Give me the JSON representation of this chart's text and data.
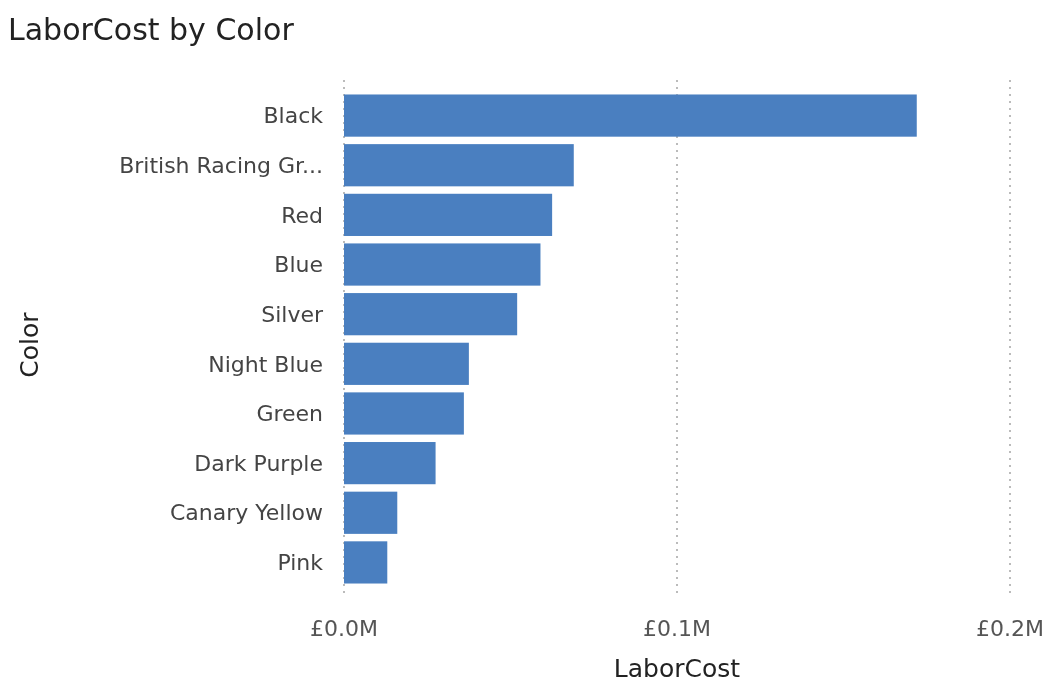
{
  "chart_data": {
    "type": "bar",
    "orientation": "horizontal",
    "title": "LaborCost by Color",
    "xlabel": "LaborCost",
    "ylabel": "Color",
    "categories": [
      "Black",
      "British Racing Gr...",
      "Red",
      "Blue",
      "Silver",
      "Night Blue",
      "Green",
      "Dark Purple",
      "Canary Yellow",
      "Pink"
    ],
    "values": [
      172000,
      69000,
      62500,
      59000,
      52000,
      37500,
      36000,
      27500,
      16000,
      13000
    ],
    "color": "#4a7fc0",
    "xlim": [
      0,
      200000
    ],
    "xticks": [
      {
        "value": 0,
        "label": "£0.0M"
      },
      {
        "value": 100000,
        "label": "£0.1M"
      },
      {
        "value": 200000,
        "label": "£0.2M"
      }
    ],
    "grid": "x"
  }
}
